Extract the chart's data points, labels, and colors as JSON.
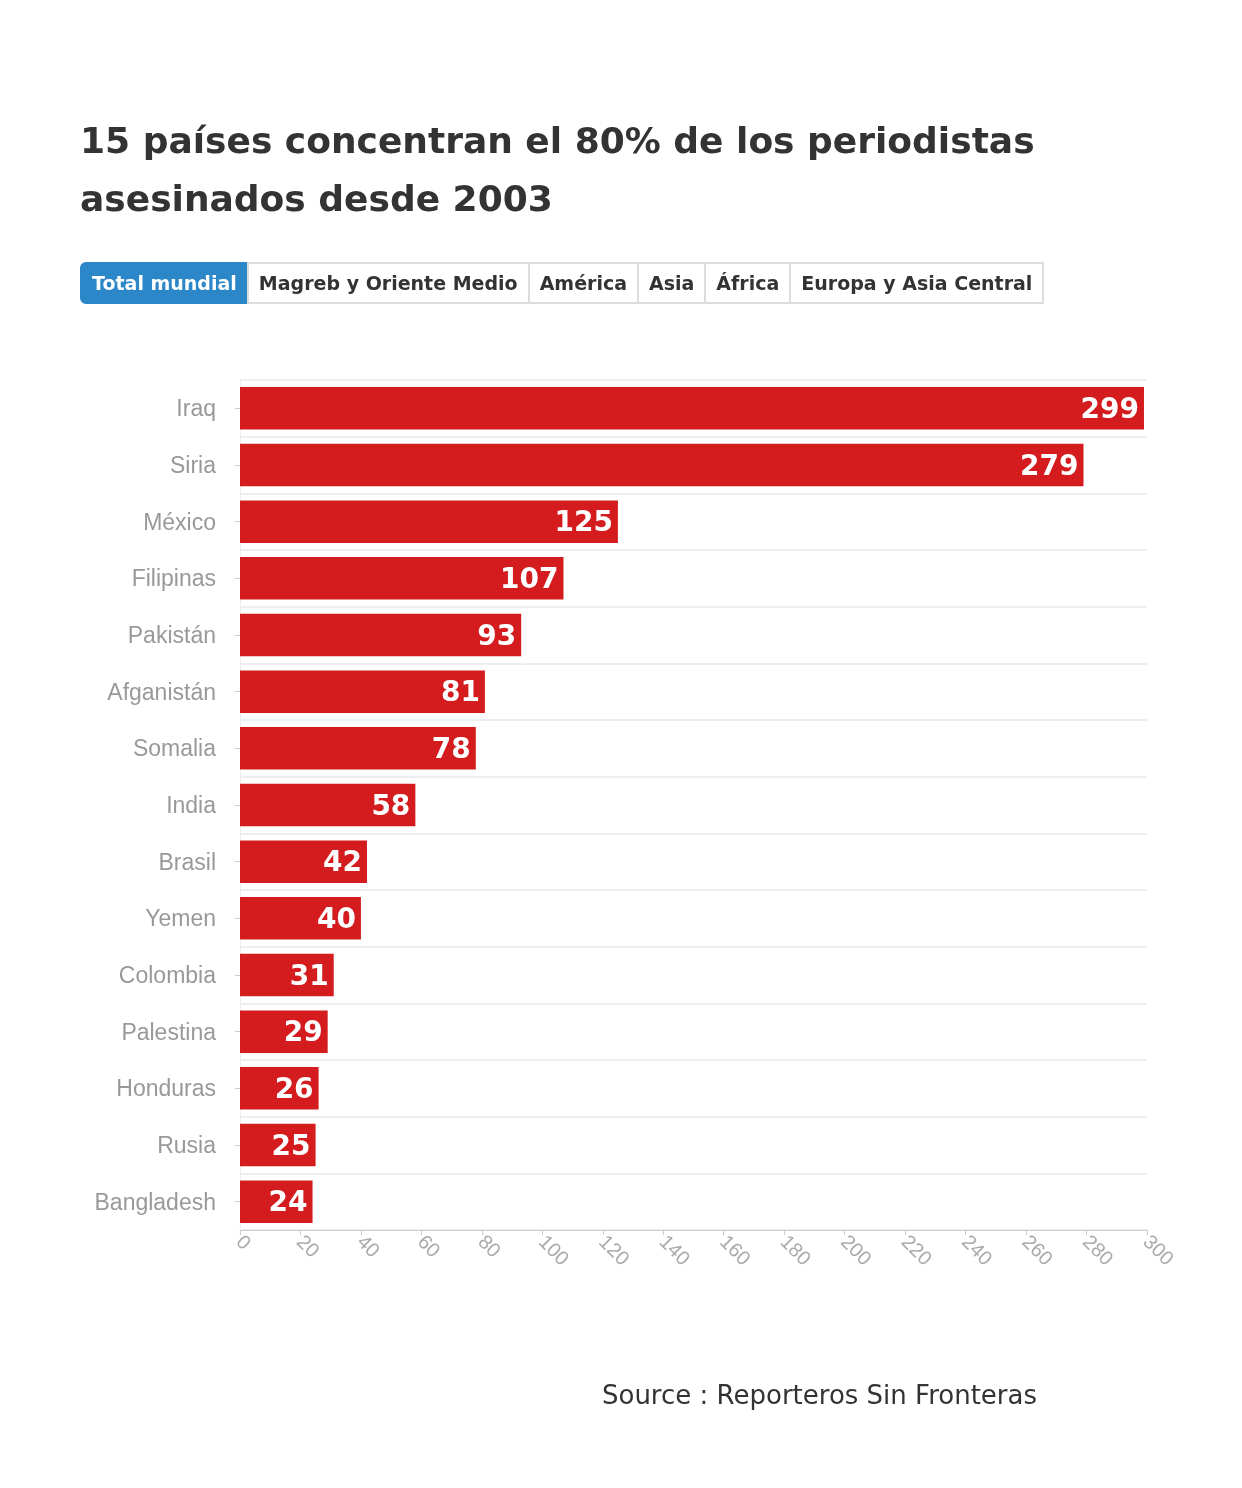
{
  "chart_data": {
    "type": "bar",
    "orientation": "horizontal",
    "title": "15 países concentran el 80% de los periodistas asesinados desde 2003",
    "categories": [
      "Iraq",
      "Siria",
      "México",
      "Filipinas",
      "Pakistán",
      "Afganistán",
      "Somalia",
      "India",
      "Brasil",
      "Yemen",
      "Colombia",
      "Palestina",
      "Honduras",
      "Rusia",
      "Bangladesh"
    ],
    "values": [
      299,
      279,
      125,
      107,
      93,
      81,
      78,
      58,
      42,
      40,
      31,
      29,
      26,
      25,
      24
    ],
    "color": "#d41c1f",
    "data_labels": true,
    "xlim": [
      0,
      300
    ],
    "xticks": [
      0,
      20,
      40,
      60,
      80,
      100,
      120,
      140,
      160,
      180,
      200,
      220,
      240,
      260,
      280,
      300
    ],
    "grid": "y",
    "annotations": [
      "Total mundial",
      "Magreb y Oriente Medio",
      "América",
      "Asia",
      "África",
      "Europa y Asia Central",
      "Source : Reporteros Sin Fronteras"
    ]
  }
}
